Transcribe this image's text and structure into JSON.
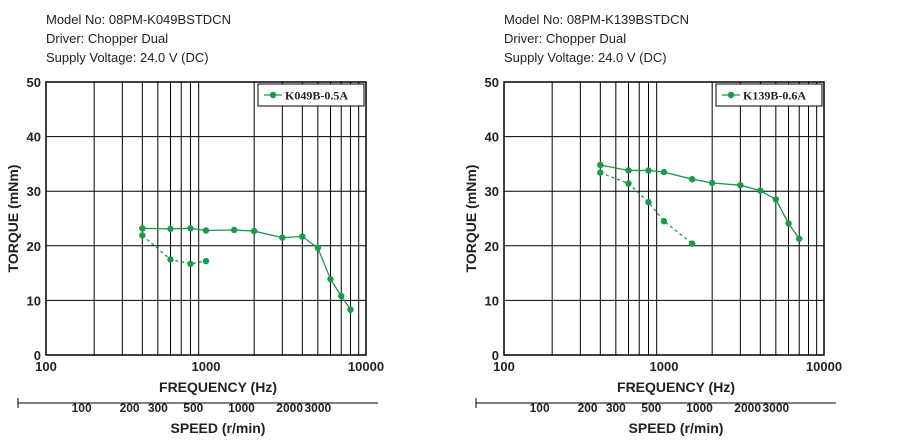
{
  "colors": {
    "series": "#1a9a4a",
    "grid": "#000000",
    "text": "#222222"
  },
  "charts": [
    {
      "info": {
        "model": "Model No: 08PM-K049BSTDCN",
        "driver": "Driver: Chopper Dual",
        "voltage": "Supply Voltage: 24.0 V (DC)"
      },
      "legend": "K049B-0.5A"
    },
    {
      "info": {
        "model": "Model No: 08PM-K139BSTDCN",
        "driver": "Driver: Chopper Dual",
        "voltage": "Supply Voltage: 24.0 V (DC)"
      },
      "legend": "K139B-0.6A"
    }
  ],
  "chart_data": [
    {
      "type": "line",
      "xscale": "log",
      "xlim": [
        100,
        10000
      ],
      "ylim": [
        0,
        50
      ],
      "xlabel": "FREQUENCY (Hz)",
      "ylabel": "TORQUE (mNm)",
      "x2label": "SPEED (r/min)",
      "yticks": [
        "0",
        "10",
        "20",
        "30",
        "40",
        "50"
      ],
      "xticks": [
        "100",
        "1000",
        "10000"
      ],
      "speed_ticks": [
        {
          "label": "100",
          "freq": 167
        },
        {
          "label": "200",
          "freq": 333
        },
        {
          "label": "300",
          "freq": 500
        },
        {
          "label": "500",
          "freq": 833
        },
        {
          "label": "1000",
          "freq": 1667
        },
        {
          "label": "2000",
          "freq": 3333
        },
        {
          "label": "3000",
          "freq": 5000
        }
      ],
      "legend_position": "top-right",
      "series": [
        {
          "name": "K049B-0.5A",
          "style": "solid",
          "x": [
            400,
            600,
            800,
            1000,
            1500,
            2000,
            3000,
            4000,
            5000,
            6000,
            7000,
            8000
          ],
          "y": [
            23.2,
            23.1,
            23.2,
            22.8,
            22.9,
            22.7,
            21.5,
            21.7,
            19.6,
            13.9,
            10.8,
            8.3
          ]
        },
        {
          "name": "",
          "style": "dashed",
          "x": [
            400,
            600,
            800,
            1000
          ],
          "y": [
            21.9,
            17.5,
            16.7,
            17.2
          ]
        }
      ]
    },
    {
      "type": "line",
      "xscale": "log",
      "xlim": [
        100,
        10000
      ],
      "ylim": [
        0,
        50
      ],
      "xlabel": "FREQUENCY (Hz)",
      "ylabel": "TORQUE (mNm)",
      "x2label": "SPEED (r/min)",
      "yticks": [
        "0",
        "10",
        "20",
        "30",
        "40",
        "50"
      ],
      "xticks": [
        "100",
        "1000",
        "10000"
      ],
      "speed_ticks": [
        {
          "label": "100",
          "freq": 167
        },
        {
          "label": "200",
          "freq": 333
        },
        {
          "label": "300",
          "freq": 500
        },
        {
          "label": "500",
          "freq": 833
        },
        {
          "label": "1000",
          "freq": 1667
        },
        {
          "label": "2000",
          "freq": 3333
        },
        {
          "label": "3000",
          "freq": 5000
        }
      ],
      "legend_position": "top-right",
      "series": [
        {
          "name": "K139B-0.6A",
          "style": "solid",
          "x": [
            400,
            600,
            800,
            1000,
            1500,
            2000,
            3000,
            4000,
            5000,
            6000,
            7000
          ],
          "y": [
            34.8,
            33.8,
            33.8,
            33.5,
            32.2,
            31.5,
            31.1,
            30.1,
            28.5,
            24.1,
            21.3
          ]
        },
        {
          "name": "",
          "style": "dashed",
          "x": [
            400,
            600,
            800,
            1000,
            1500
          ],
          "y": [
            33.4,
            31.4,
            28.0,
            24.5,
            20.4
          ]
        }
      ]
    }
  ]
}
